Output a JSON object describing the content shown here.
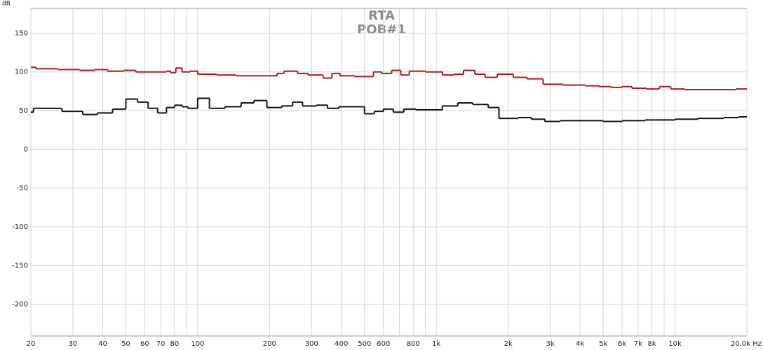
{
  "chart_data": {
    "type": "step",
    "title": "RTA",
    "subtitle": "POB#1",
    "ylabel": "dB",
    "xlog": true,
    "xlim": [
      20,
      20000
    ],
    "ylim": [
      -241,
      182
    ],
    "grid": true,
    "xticks": [
      20,
      30,
      40,
      50,
      60,
      70,
      80,
      100,
      200,
      300,
      400,
      500,
      600,
      800,
      {
        "value": 1000,
        "label": "1k"
      },
      {
        "value": 2000,
        "label": "2k"
      },
      {
        "value": 3000,
        "label": "3k"
      },
      {
        "value": 4000,
        "label": "4k"
      },
      {
        "value": 5000,
        "label": "5k"
      },
      {
        "value": 6000,
        "label": "6k"
      },
      {
        "value": 7000,
        "label": "7k"
      },
      {
        "value": 8000,
        "label": "8k"
      },
      {
        "value": 10000,
        "label": "10k"
      },
      {
        "value": 20000,
        "label": "20,0k Hz"
      }
    ],
    "x_minor_grid": [
      90,
      700,
      900,
      9000
    ],
    "yticks": [
      150,
      100,
      50,
      0,
      -50,
      -100,
      -150,
      -200
    ],
    "series": [
      {
        "color": "#b0181c",
        "x": [
          20,
          21,
          26,
          32,
          37,
          42,
          49,
          55,
          74,
          77,
          81,
          86,
          93,
          100,
          120,
          145,
          215,
          230,
          262,
          290,
          335,
          365,
          395,
          455,
          545,
          590,
          650,
          710,
          770,
          900,
          1060,
          1190,
          1300,
          1450,
          1600,
          1800,
          2100,
          2400,
          2800,
          3400,
          4200,
          4800,
          5400,
          6000,
          6600,
          7600,
          8600,
          9600,
          11000,
          16000,
          18000
        ],
        "values": [
          106,
          104,
          103,
          102,
          103,
          101,
          102,
          100,
          101,
          99,
          105,
          100,
          101,
          97,
          96,
          95,
          98,
          101,
          98,
          96,
          92,
          98,
          95,
          94,
          100,
          98,
          102,
          96,
          101,
          100,
          96,
          97,
          102,
          97,
          93,
          97,
          93,
          91,
          84,
          83,
          82,
          81,
          80,
          81,
          79,
          78,
          81,
          78,
          77,
          77,
          78
        ]
      },
      {
        "color": "#111111",
        "x": [
          20,
          20.5,
          27,
          33,
          38,
          44,
          50,
          56,
          62,
          68,
          74,
          80,
          86,
          91,
          100,
          112,
          130,
          152,
          172,
          195,
          225,
          250,
          275,
          315,
          350,
          390,
          440,
          500,
          550,
          600,
          660,
          730,
          820,
          1060,
          1230,
          1420,
          1650,
          1830,
          2200,
          2500,
          2850,
          3300,
          5000,
          6000,
          7500,
          10000,
          12500,
          16000,
          18500
        ],
        "values": [
          48,
          53,
          49,
          45,
          47,
          52,
          65,
          61,
          53,
          47,
          54,
          57,
          55,
          53,
          66,
          53,
          55,
          60,
          63,
          54,
          56,
          61,
          56,
          57,
          53,
          55,
          55,
          46,
          49,
          52,
          48,
          52,
          51,
          56,
          60,
          58,
          54,
          40,
          41,
          39,
          36,
          37,
          36,
          37,
          38,
          39,
          40,
          41,
          42
        ]
      }
    ]
  }
}
